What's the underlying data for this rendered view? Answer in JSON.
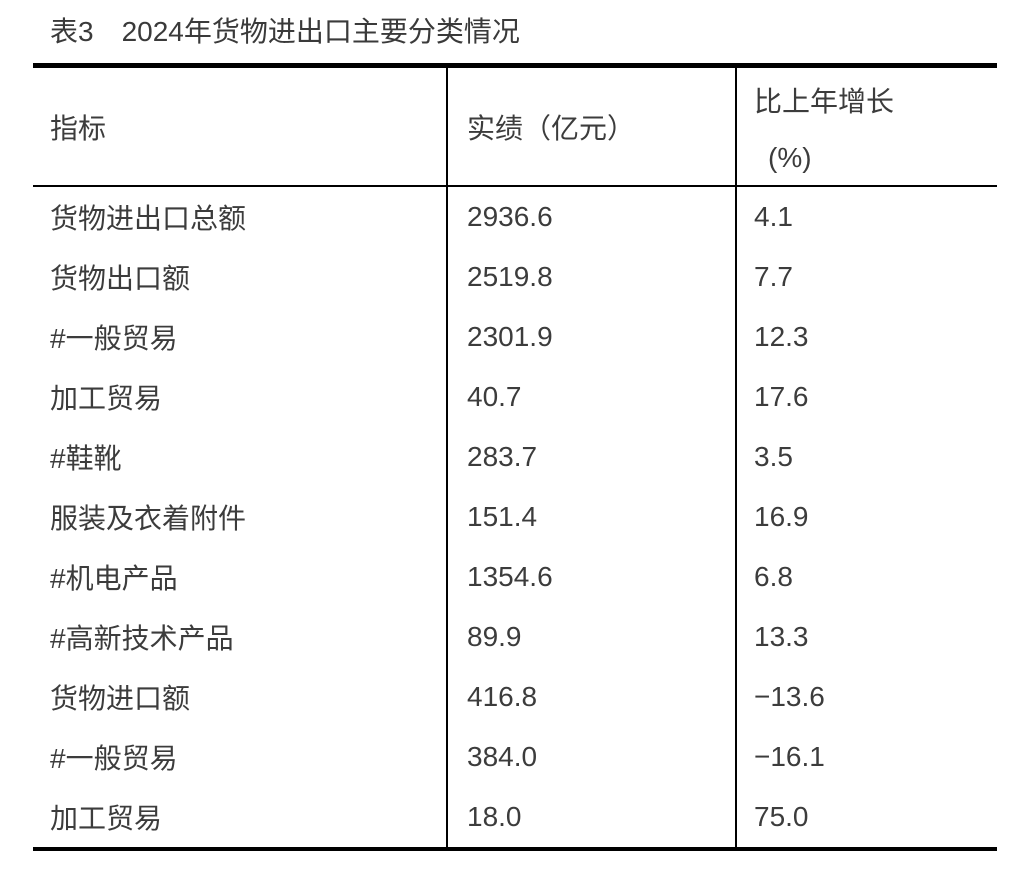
{
  "title": "表3　2024年货物进出口主要分类情况",
  "colors": {
    "text": "#3c3c3c",
    "border": "#000000",
    "background": "#ffffff"
  },
  "table": {
    "headers": {
      "indicator": "指标",
      "value": "实绩（亿元）",
      "growth_line1": "比上年增长",
      "growth_line2": "(%)"
    },
    "rows": [
      {
        "indicator": "货物进出口总额",
        "value": "2936.6",
        "growth": "4.1"
      },
      {
        "indicator": "货物出口额",
        "value": "2519.8",
        "growth": "7.7"
      },
      {
        "indicator": "#一般贸易",
        "value": "2301.9",
        "growth": "12.3"
      },
      {
        "indicator": "加工贸易",
        "value": "40.7",
        "growth": "17.6"
      },
      {
        "indicator": "#鞋靴",
        "value": "283.7",
        "growth": "3.5"
      },
      {
        "indicator": "服装及衣着附件",
        "value": "151.4",
        "growth": "16.9"
      },
      {
        "indicator": "#机电产品",
        "value": "1354.6",
        "growth": "6.8"
      },
      {
        "indicator": "#高新技术产品",
        "value": "89.9",
        "growth": "13.3"
      },
      {
        "indicator": "货物进口额",
        "value": "416.8",
        "growth": "−13.6"
      },
      {
        "indicator": "#一般贸易",
        "value": "384.0",
        "growth": "−16.1"
      },
      {
        "indicator": "加工贸易",
        "value": "18.0",
        "growth": "75.0"
      }
    ]
  }
}
